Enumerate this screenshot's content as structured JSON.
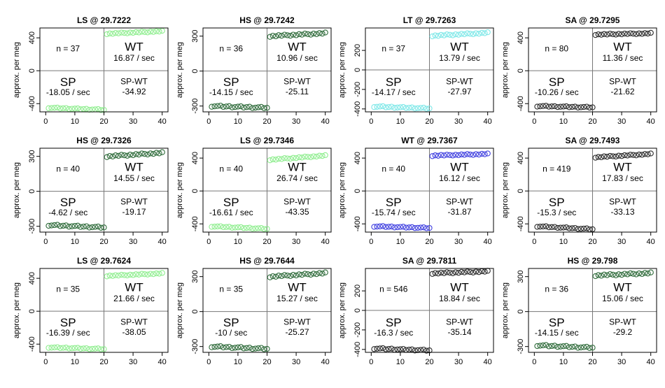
{
  "ylabel": "approx. per meg",
  "chart_data": [
    {
      "type": "scatter",
      "title": "LS @ 29.7222",
      "n_label": "n = 37",
      "wt_rate": "16.87 / sec",
      "sp_rate": "-18.05 / sec",
      "diff": "-34.92",
      "wt_label": "WT",
      "sp_label": "SP",
      "diff_label": "SP-WT",
      "color": "#90ee90",
      "ylim": [
        -500,
        520
      ],
      "yticks": [
        -400,
        0,
        400
      ],
      "xlim": [
        -2,
        42
      ],
      "xticks": [
        0,
        10,
        20,
        30,
        40
      ],
      "sp_x": [
        1,
        20
      ],
      "sp_y": [
        -450,
        -475
      ],
      "wt_x": [
        21,
        40
      ],
      "wt_y": [
        450,
        480
      ]
    },
    {
      "type": "scatter",
      "title": "HS @ 29.7242",
      "n_label": "n = 36",
      "wt_rate": "10.96 / sec",
      "sp_rate": "-14.15 / sec",
      "diff": "-25.11",
      "wt_label": "WT",
      "sp_label": "SP",
      "diff_label": "SP-WT",
      "color": "#2e6b3a",
      "ylim": [
        -350,
        370
      ],
      "yticks": [
        -300,
        0,
        300
      ],
      "xlim": [
        -2,
        42
      ],
      "xticks": [
        0,
        10,
        20,
        30,
        40
      ],
      "sp_x": [
        1,
        20
      ],
      "sp_y": [
        -300,
        -315
      ],
      "wt_x": [
        21,
        40
      ],
      "wt_y": [
        300,
        325
      ]
    },
    {
      "type": "scatter",
      "title": "LT @ 29.7263",
      "n_label": "n = 37",
      "wt_rate": "13.79 / sec",
      "sp_rate": "-14.17 / sec",
      "diff": "-27.97",
      "wt_label": "WT",
      "sp_label": "SP",
      "diff_label": "SP-WT",
      "color": "#7fe8e8",
      "ylim": [
        -430,
        430
      ],
      "yticks": [
        -400,
        -200,
        0,
        200
      ],
      "xlim": [
        -2,
        42
      ],
      "xticks": [
        0,
        10,
        20,
        30,
        40
      ],
      "sp_x": [
        1,
        20
      ],
      "sp_y": [
        -375,
        -395
      ],
      "wt_x": [
        21,
        40
      ],
      "wt_y": [
        350,
        380
      ]
    },
    {
      "type": "scatter",
      "title": "SA @ 29.7295",
      "n_label": "n = 80",
      "wt_rate": "11.36 / sec",
      "sp_rate": "-10.26 / sec",
      "diff": "-21.62",
      "wt_label": "WT",
      "sp_label": "SP",
      "diff_label": "SP-WT",
      "color": "#2a2a2a",
      "ylim": [
        -500,
        520
      ],
      "yticks": [
        -400,
        0,
        400
      ],
      "xlim": [
        -2,
        42
      ],
      "xticks": [
        0,
        10,
        20,
        30,
        40
      ],
      "sp_x": [
        1,
        20
      ],
      "sp_y": [
        -430,
        -445
      ],
      "wt_x": [
        21,
        40
      ],
      "wt_y": [
        440,
        455
      ]
    },
    {
      "type": "scatter",
      "title": "HS @ 29.7326",
      "n_label": "n = 40",
      "wt_rate": "14.55 / sec",
      "sp_rate": "-4.62 / sec",
      "diff": "-19.17",
      "wt_label": "WT",
      "sp_label": "SP",
      "diff_label": "SP-WT",
      "color": "#2e6b3a",
      "ylim": [
        -350,
        370
      ],
      "yticks": [
        -300,
        0,
        300
      ],
      "xlim": [
        -2,
        42
      ],
      "xticks": [
        0,
        10,
        20,
        30,
        40
      ],
      "sp_x": [
        1,
        20
      ],
      "sp_y": [
        -290,
        -310
      ],
      "wt_x": [
        21,
        40
      ],
      "wt_y": [
        300,
        330
      ]
    },
    {
      "type": "scatter",
      "title": "LS @ 29.7346",
      "n_label": "n = 40",
      "wt_rate": "26.74 / sec",
      "sp_rate": "-16.61 / sec",
      "diff": "-43.35",
      "wt_label": "WT",
      "sp_label": "SP",
      "diff_label": "SP-WT",
      "color": "#90ee90",
      "ylim": [
        -500,
        520
      ],
      "yticks": [
        -400,
        0,
        400
      ],
      "xlim": [
        -2,
        42
      ],
      "xticks": [
        0,
        10,
        20,
        30,
        40
      ],
      "sp_x": [
        1,
        20
      ],
      "sp_y": [
        -430,
        -460
      ],
      "wt_x": [
        21,
        40
      ],
      "wt_y": [
        380,
        430
      ]
    },
    {
      "type": "scatter",
      "title": "WT @ 29.7367",
      "n_label": "n = 40",
      "wt_rate": "16.12 / sec",
      "sp_rate": "-15.74 / sec",
      "diff": "-31.87",
      "wt_label": "WT",
      "sp_label": "SP",
      "diff_label": "SP-WT",
      "color": "#4040e0",
      "ylim": [
        -500,
        520
      ],
      "yticks": [
        -400,
        0,
        400
      ],
      "xlim": [
        -2,
        42
      ],
      "xticks": [
        0,
        10,
        20,
        30,
        40
      ],
      "sp_x": [
        1,
        20
      ],
      "sp_y": [
        -430,
        -450
      ],
      "wt_x": [
        21,
        40
      ],
      "wt_y": [
        430,
        450
      ]
    },
    {
      "type": "scatter",
      "title": "SA @ 29.7493",
      "n_label": "n = 419",
      "wt_rate": "17.83 / sec",
      "sp_rate": "-15.3 / sec",
      "diff": "-33.13",
      "wt_label": "WT",
      "sp_label": "SP",
      "diff_label": "SP-WT",
      "color": "#2a2a2a",
      "ylim": [
        -500,
        520
      ],
      "yticks": [
        -400,
        0,
        400
      ],
      "xlim": [
        -2,
        42
      ],
      "xticks": [
        0,
        10,
        20,
        30,
        40
      ],
      "sp_x": [
        1,
        20
      ],
      "sp_y": [
        -430,
        -465
      ],
      "wt_x": [
        21,
        40
      ],
      "wt_y": [
        410,
        450
      ]
    },
    {
      "type": "scatter",
      "title": "LS @ 29.7624",
      "n_label": "n = 35",
      "wt_rate": "21.66 / sec",
      "sp_rate": "-16.39 / sec",
      "diff": "-38.05",
      "wt_label": "WT",
      "sp_label": "SP",
      "diff_label": "SP-WT",
      "color": "#90ee90",
      "ylim": [
        -500,
        520
      ],
      "yticks": [
        -400,
        0,
        400
      ],
      "xlim": [
        -2,
        42
      ],
      "xticks": [
        0,
        10,
        20,
        30,
        40
      ],
      "sp_x": [
        1,
        20
      ],
      "sp_y": [
        -440,
        -460
      ],
      "wt_x": [
        21,
        40
      ],
      "wt_y": [
        430,
        460
      ]
    },
    {
      "type": "scatter",
      "title": "HS @ 29.7644",
      "n_label": "n = 35",
      "wt_rate": "15.27 / sec",
      "sp_rate": "-10 / sec",
      "diff": "-25.27",
      "wt_label": "WT",
      "sp_label": "SP",
      "diff_label": "SP-WT",
      "color": "#2e6b3a",
      "ylim": [
        -350,
        370
      ],
      "yticks": [
        -300,
        0,
        300
      ],
      "xlim": [
        -2,
        42
      ],
      "xticks": [
        0,
        10,
        20,
        30,
        40
      ],
      "sp_x": [
        1,
        20
      ],
      "sp_y": [
        -300,
        -320
      ],
      "wt_x": [
        21,
        40
      ],
      "wt_y": [
        300,
        330
      ]
    },
    {
      "type": "scatter",
      "title": "SA @ 29.7811",
      "n_label": "n = 546",
      "wt_rate": "18.84 / sec",
      "sp_rate": "-16.3 / sec",
      "diff": "-35.14",
      "wt_label": "WT",
      "sp_label": "SP",
      "diff_label": "SP-WT",
      "color": "#2a2a2a",
      "ylim": [
        -430,
        430
      ],
      "yticks": [
        -400,
        -200,
        0,
        200
      ],
      "xlim": [
        -2,
        42
      ],
      "xticks": [
        0,
        10,
        20,
        30,
        40
      ],
      "sp_x": [
        1,
        20
      ],
      "sp_y": [
        -390,
        -410
      ],
      "wt_x": [
        21,
        40
      ],
      "wt_y": [
        380,
        400
      ]
    },
    {
      "type": "scatter",
      "title": "HS @ 29.798",
      "n_label": "n = 36",
      "wt_rate": "15.06 / sec",
      "sp_rate": "-14.15 / sec",
      "diff": "-29.2",
      "wt_label": "WT",
      "sp_label": "SP",
      "diff_label": "SP-WT",
      "color": "#2e6b3a",
      "ylim": [
        -350,
        370
      ],
      "yticks": [
        -300,
        0,
        300
      ],
      "xlim": [
        -2,
        42
      ],
      "xticks": [
        0,
        10,
        20,
        30,
        40
      ],
      "sp_x": [
        1,
        20
      ],
      "sp_y": [
        -290,
        -310
      ],
      "wt_x": [
        21,
        40
      ],
      "wt_y": [
        310,
        330
      ]
    }
  ]
}
